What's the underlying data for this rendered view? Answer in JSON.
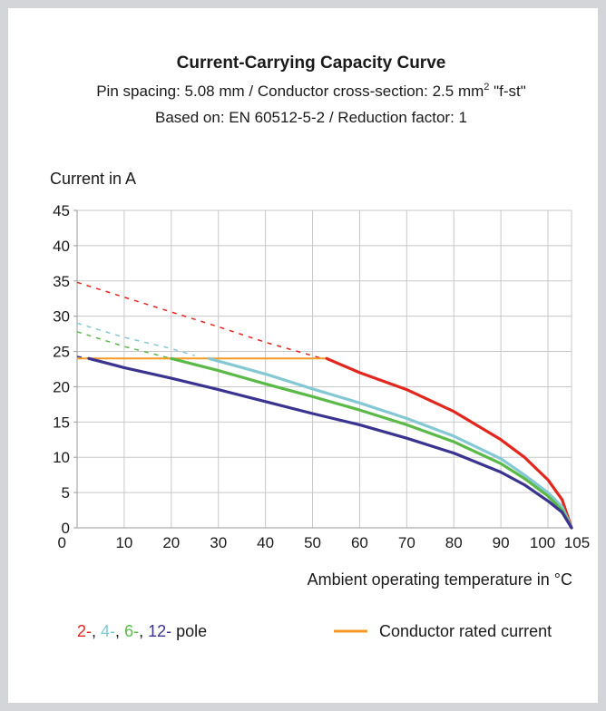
{
  "chart_data": {
    "type": "line",
    "title": "Current-Carrying Capacity Curve",
    "subtitle_lines": [
      "Pin spacing: 5.08 mm / Conductor cross-section: 2.5 mm",
      "Based on: EN 60512-5-2 / Reduction factor: 1"
    ],
    "subtitle_sup": "2",
    "subtitle_suffix": " \"f-st\"",
    "xlabel": "Ambient operating temperature in °C",
    "ylabel": "Current in A",
    "xlim": [
      0,
      105
    ],
    "ylim": [
      0,
      45
    ],
    "x_ticks": [
      10,
      20,
      30,
      40,
      50,
      60,
      70,
      80,
      90,
      100,
      105
    ],
    "y_ticks": [
      0,
      5,
      10,
      15,
      20,
      25,
      30,
      35,
      40,
      45
    ],
    "grid": true,
    "colors": {
      "red": "#e2261d",
      "lightblue": "#83c8d3",
      "green": "#5ab947",
      "navy": "#3a3390",
      "orange": "#f59a23",
      "grid": "#c8c8c8",
      "frame": "#d4d5d9"
    },
    "series": [
      {
        "name": "2-",
        "color": "#e2261d",
        "dashed": {
          "x": [
            0,
            10,
            20,
            30,
            40,
            50,
            52
          ],
          "y": [
            34.8,
            32.7,
            30.6,
            28.5,
            26.3,
            24.4,
            24.0
          ]
        },
        "solid": {
          "x": [
            53,
            60,
            70,
            80,
            90,
            95,
            100,
            103,
            105
          ],
          "y": [
            24.0,
            22.0,
            19.6,
            16.5,
            12.5,
            10.0,
            6.8,
            4.0,
            0
          ]
        }
      },
      {
        "name": "4-",
        "color": "#83c8d3",
        "dashed": {
          "x": [
            0,
            10,
            20,
            25
          ],
          "y": [
            29.0,
            27.0,
            25.4,
            24.4
          ]
        },
        "solid": {
          "x": [
            28,
            40,
            50,
            60,
            70,
            80,
            90,
            95,
            100,
            103,
            105
          ],
          "y": [
            24.0,
            21.8,
            19.7,
            17.7,
            15.5,
            13.0,
            9.8,
            7.5,
            5.0,
            3.0,
            0
          ]
        }
      },
      {
        "name": "6-",
        "color": "#5ab947",
        "dashed": {
          "x": [
            0,
            10,
            20
          ],
          "y": [
            27.8,
            25.7,
            24.0
          ]
        },
        "solid": {
          "x": [
            20,
            30,
            40,
            50,
            60,
            70,
            80,
            90,
            95,
            100,
            103,
            105
          ],
          "y": [
            24.0,
            22.3,
            20.4,
            18.6,
            16.7,
            14.6,
            12.2,
            9.1,
            7.0,
            4.5,
            2.5,
            0
          ]
        }
      },
      {
        "name": "12-",
        "color": "#3a3390",
        "dashed": {
          "x": [
            0,
            2.5
          ],
          "y": [
            24.3,
            24.0
          ]
        },
        "solid": {
          "x": [
            2.5,
            10,
            20,
            30,
            40,
            50,
            60,
            70,
            80,
            90,
            95,
            100,
            103,
            105
          ],
          "y": [
            24.0,
            22.7,
            21.2,
            19.6,
            17.9,
            16.2,
            14.6,
            12.7,
            10.6,
            7.9,
            6.1,
            3.8,
            2.2,
            0
          ]
        }
      }
    ],
    "rated_current": {
      "name": "Conductor rated current",
      "color": "#f59a23",
      "x": [
        0,
        53
      ],
      "y": [
        24.0,
        24.0
      ]
    },
    "legend": {
      "pole_parts": [
        {
          "text": "2-",
          "color": "#e2261d"
        },
        {
          "text": ", ",
          "color": "#1a1a1a"
        },
        {
          "text": "4-",
          "color": "#83c8d3"
        },
        {
          "text": ", ",
          "color": "#1a1a1a"
        },
        {
          "text": "6-",
          "color": "#5ab947"
        },
        {
          "text": ", ",
          "color": "#1a1a1a"
        },
        {
          "text": "12-",
          "color": "#3a3390"
        },
        {
          "text": " pole",
          "color": "#1a1a1a"
        }
      ],
      "rated_label": "Conductor rated current",
      "placement": "bottom"
    }
  }
}
